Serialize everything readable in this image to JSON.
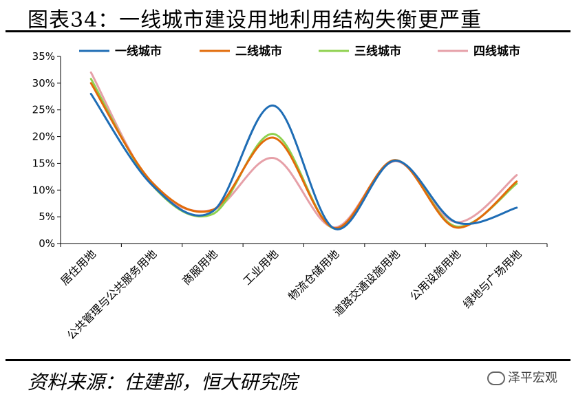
{
  "title": "图表34：一线城市建设用地利用结构失衡更严重",
  "source": "资料来源：住建部，恒大研究院",
  "watermark": "泽平宏观",
  "chart_data": {
    "type": "line",
    "smooth": true,
    "categories": [
      "居住用地",
      "公共管理与公共服务用地",
      "商服用地",
      "工业用地",
      "物流仓储用地",
      "道路交通设施用地",
      "公用设施用地",
      "绿地与广场用地"
    ],
    "y_ticks": [
      "0%",
      "5%",
      "10%",
      "15%",
      "20%",
      "25%",
      "30%",
      "35%"
    ],
    "ylim": [
      0,
      35
    ],
    "legend_position": "top",
    "grid": false,
    "series": [
      {
        "name": "一线城市",
        "color": "#1f6db5",
        "values": [
          28,
          11,
          6,
          25.8,
          2.8,
          15.5,
          4,
          6.7
        ]
      },
      {
        "name": "二线城市",
        "color": "#e26b0a",
        "values": [
          30,
          11.5,
          6.3,
          19.8,
          2.9,
          15.6,
          3,
          11.6
        ]
      },
      {
        "name": "三线城市",
        "color": "#8fd14f",
        "values": [
          30.8,
          11,
          5.5,
          20.5,
          2.8,
          15.6,
          3.2,
          11.2
        ]
      },
      {
        "name": "四线城市",
        "color": "#e6a0a8",
        "values": [
          32,
          11,
          6.3,
          16,
          3,
          15.4,
          4,
          12.8
        ]
      }
    ]
  }
}
